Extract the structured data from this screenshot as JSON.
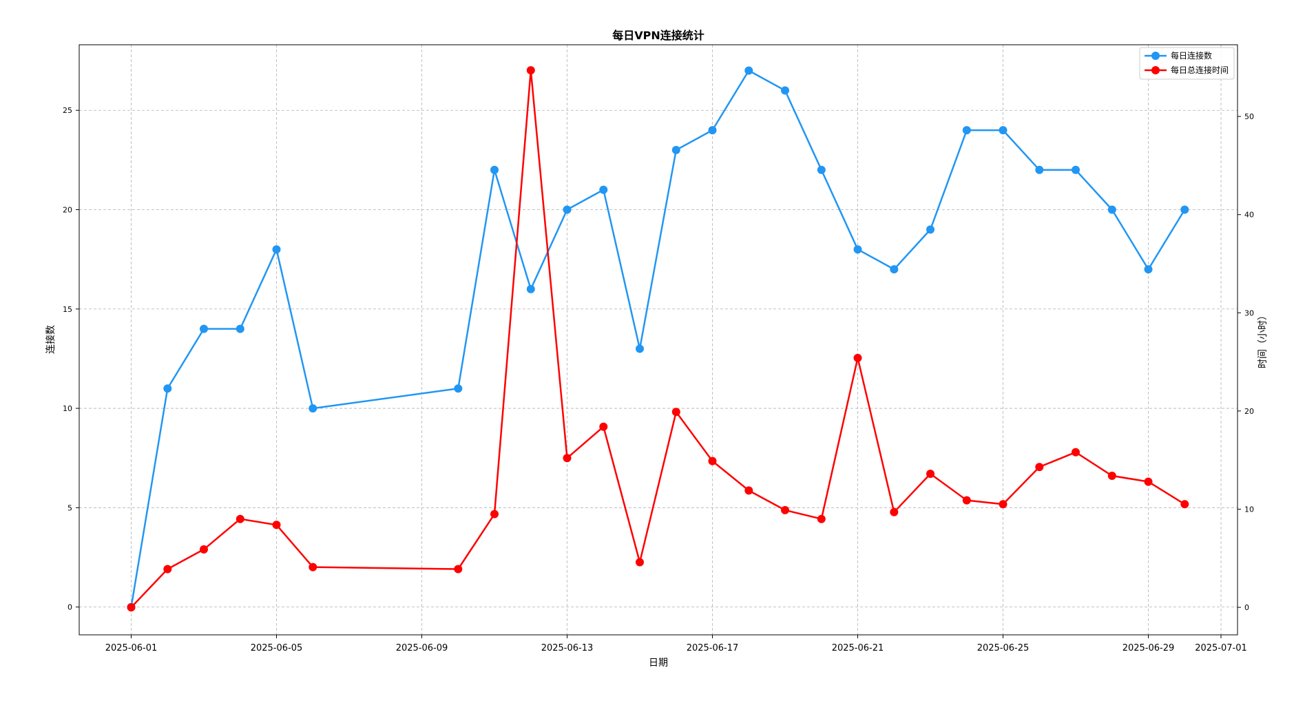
{
  "chart_data": {
    "type": "line",
    "title": "每日VPN连接统计",
    "xlabel": "日期",
    "ylabel": "连接数",
    "ylabel_right": "时间（小时）",
    "grid": true,
    "legend_position": "top-right",
    "x_ticks": [
      "2025-06-01",
      "2025-06-05",
      "2025-06-09",
      "2025-06-13",
      "2025-06-17",
      "2025-06-21",
      "2025-06-25",
      "2025-06-29",
      "2025-07-01"
    ],
    "y_left_ticks": [
      "0",
      "5",
      "10",
      "15",
      "20",
      "25"
    ],
    "y_right_ticks": [
      "0",
      "10",
      "20",
      "30",
      "40",
      "50"
    ],
    "ylim": [
      -1.4,
      28.3
    ],
    "ylim_right": [
      -2.8,
      57.3
    ],
    "series": [
      {
        "name": "每日连接数",
        "axis": "left",
        "color": "#2196f3",
        "x": [
          "2025-06-01",
          "2025-06-02",
          "2025-06-03",
          "2025-06-04",
          "2025-06-05",
          "2025-06-06",
          "2025-06-10",
          "2025-06-11",
          "2025-06-12",
          "2025-06-13",
          "2025-06-14",
          "2025-06-15",
          "2025-06-16",
          "2025-06-17",
          "2025-06-18",
          "2025-06-19",
          "2025-06-20",
          "2025-06-21",
          "2025-06-22",
          "2025-06-23",
          "2025-06-24",
          "2025-06-25",
          "2025-06-26",
          "2025-06-27",
          "2025-06-28",
          "2025-06-29",
          "2025-06-30"
        ],
        "values": [
          0,
          11,
          14,
          14,
          18,
          10,
          11,
          22,
          16,
          20,
          21,
          13,
          23,
          24,
          27,
          26,
          22,
          18,
          17,
          19,
          24,
          24,
          22,
          22,
          20,
          17,
          20
        ]
      },
      {
        "name": "每日总连接时间",
        "axis": "right",
        "color": "#ff0000",
        "x": [
          "2025-06-01",
          "2025-06-02",
          "2025-06-03",
          "2025-06-04",
          "2025-06-05",
          "2025-06-06",
          "2025-06-10",
          "2025-06-11",
          "2025-06-12",
          "2025-06-13",
          "2025-06-14",
          "2025-06-15",
          "2025-06-16",
          "2025-06-17",
          "2025-06-18",
          "2025-06-19",
          "2025-06-20",
          "2025-06-21",
          "2025-06-22",
          "2025-06-23",
          "2025-06-24",
          "2025-06-25",
          "2025-06-26",
          "2025-06-27",
          "2025-06-28",
          "2025-06-29",
          "2025-06-30"
        ],
        "values": [
          0,
          3.9,
          5.9,
          9.0,
          8.4,
          4.1,
          3.9,
          9.5,
          54.7,
          15.2,
          18.4,
          4.6,
          19.9,
          14.9,
          11.9,
          9.9,
          9.0,
          25.4,
          9.7,
          13.6,
          10.9,
          10.5,
          14.3,
          15.8,
          13.4,
          12.8,
          10.5
        ]
      }
    ]
  }
}
